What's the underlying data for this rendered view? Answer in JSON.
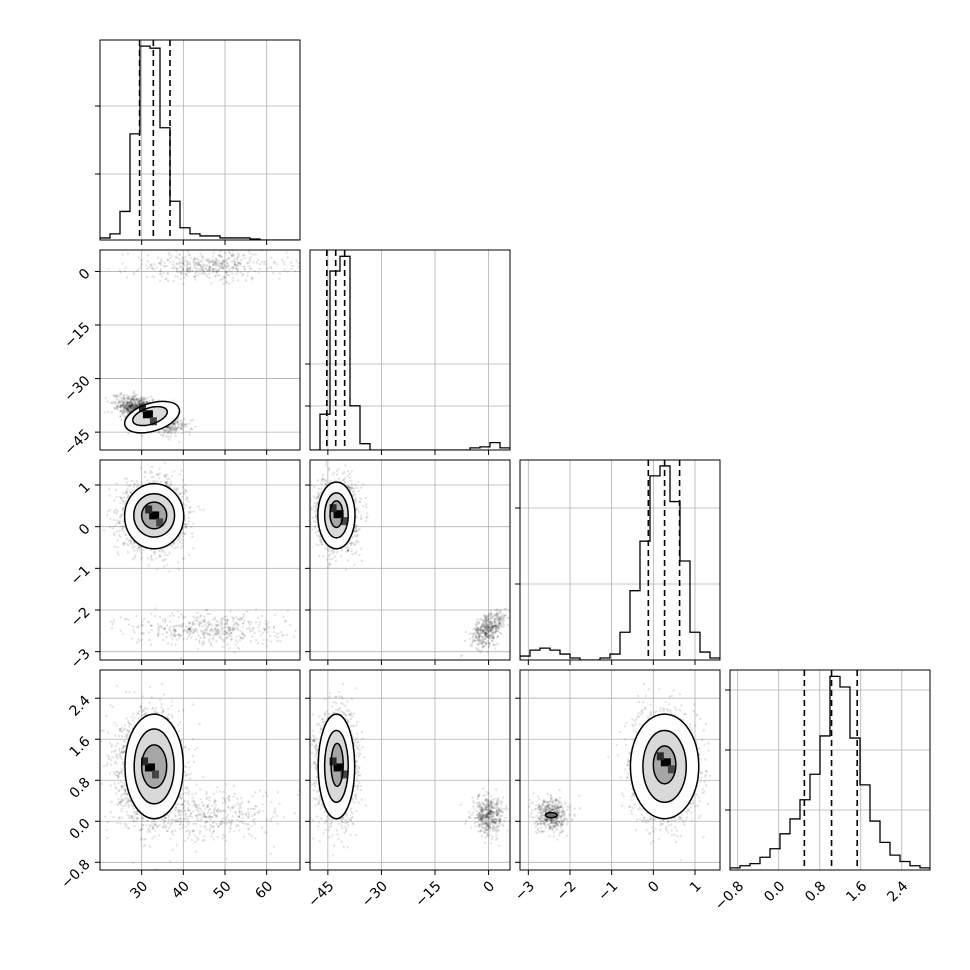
{
  "chart_data": {
    "type": "corner",
    "grid": true,
    "parameters": [
      {
        "range": [
          20,
          68
        ],
        "ticks": [
          30,
          40,
          50,
          60
        ],
        "tick_labels": [
          "30",
          "40",
          "50",
          "60"
        ]
      },
      {
        "range": [
          -50,
          6
        ],
        "ticks": [
          -45,
          -30,
          -15,
          0
        ],
        "tick_labels": [
          "−45",
          "−30",
          "−15",
          "0"
        ]
      },
      {
        "range": [
          -3.2,
          1.6
        ],
        "ticks": [
          -3,
          -2,
          -1,
          0,
          1
        ],
        "tick_labels": [
          "−3",
          "−2",
          "−1",
          "0",
          "1"
        ]
      },
      {
        "range": [
          -0.95,
          2.95
        ],
        "ticks": [
          -0.8,
          0.0,
          0.8,
          1.6,
          2.4
        ],
        "tick_labels": [
          "−0.8",
          "0.0",
          "0.8",
          "1.6",
          "2.4"
        ]
      }
    ],
    "histograms": [
      {
        "edges": [
          20,
          22.4,
          24.8,
          27.2,
          29.6,
          32,
          34.4,
          36.8,
          39.2,
          41.6,
          44,
          46.4,
          48.8,
          51.2,
          53.6,
          56,
          58.4,
          60.8,
          63.2,
          65.6,
          68
        ],
        "counts": [
          1,
          3,
          14,
          52,
          95,
          94,
          55,
          19,
          6,
          3,
          2,
          2,
          1,
          1,
          1,
          0.5,
          0,
          0,
          0,
          0
        ],
        "quantiles": [
          29.5,
          32.8,
          36.8
        ],
        "ymax": 98,
        "yticks": [
          0.33,
          0.67
        ]
      },
      {
        "edges": [
          -50,
          -47.2,
          -44.4,
          -41.6,
          -38.8,
          -36,
          -33.2,
          -30.4,
          -27.6,
          -24.8,
          -22,
          -19.2,
          -16.4,
          -13.6,
          -10.8,
          -8,
          -5.2,
          -2.4,
          0.4,
          3.2,
          6
        ],
        "counts": [
          0,
          17,
          85,
          92,
          21,
          3,
          0,
          0,
          0,
          0,
          0,
          0,
          0,
          0,
          0,
          0,
          1,
          1.5,
          3.5,
          1
        ],
        "quantiles": [
          -45.3,
          -42.8,
          -40.3
        ],
        "ymax": 95,
        "yticks": [
          0.22,
          0.43
        ]
      },
      {
        "edges": [
          -3.2,
          -2.96,
          -2.72,
          -2.48,
          -2.24,
          -2,
          -1.76,
          -1.52,
          -1.28,
          -1.04,
          -0.8,
          -0.56,
          -0.32,
          -0.08,
          0.16,
          0.4,
          0.64,
          0.88,
          1.12,
          1.36,
          1.6
        ],
        "counts": [
          2,
          5,
          6,
          5,
          3,
          1,
          0,
          0,
          1,
          3,
          14,
          35,
          60,
          93,
          98,
          80,
          50,
          14,
          4,
          1
        ],
        "quantiles": [
          -0.12,
          0.27,
          0.63
        ],
        "ymax": 101,
        "yticks": [
          0.38,
          0.76
        ]
      },
      {
        "edges": [
          -0.95,
          -0.755,
          -0.56,
          -0.365,
          -0.17,
          0.025,
          0.22,
          0.415,
          0.61,
          0.805,
          1.0,
          1.195,
          1.39,
          1.585,
          1.78,
          1.975,
          2.17,
          2.365,
          2.56,
          2.755,
          2.95
        ],
        "counts": [
          1,
          2,
          3,
          6,
          10,
          17,
          24,
          33,
          45,
          63,
          91,
          86,
          62,
          40,
          23,
          13,
          7,
          4,
          2,
          1
        ],
        "quantiles": [
          0.5,
          1.03,
          1.53
        ],
        "ymax": 94,
        "yticks": [
          0.3,
          0.6,
          0.9
        ]
      }
    ],
    "pairs": [
      {
        "row": 1,
        "col": 0,
        "clusters": [
          {
            "mean": [
              32,
              -40
            ],
            "sd": [
              3.4,
              2.2
            ],
            "corr": -0.6,
            "n": 2200
          },
          {
            "mean": [
              46,
              1.5
            ],
            "sd": [
              9.5,
              2.0
            ],
            "corr": 0,
            "n": 450
          }
        ],
        "contours": [
          {
            "center": [
              32.5,
              -40.8
            ],
            "radii": [
              6.8,
              3.9
            ],
            "angle": -0.3
          },
          {
            "center": [
              32,
              -40.5
            ],
            "radii": [
              4.3,
              2.3
            ],
            "angle": -0.3
          }
        ],
        "peak": [
          31.5,
          -40
        ]
      },
      {
        "row": 2,
        "col": 0,
        "clusters": [
          {
            "mean": [
              33,
              0.27
            ],
            "sd": [
              3.6,
              0.38
            ],
            "corr": 0,
            "n": 2200
          },
          {
            "mean": [
              46,
              -2.45
            ],
            "sd": [
              9.5,
              0.2
            ],
            "corr": 0,
            "n": 450
          }
        ],
        "contours": [
          {
            "center": [
              33,
              0.25
            ],
            "radii": [
              7.1,
              0.78
            ],
            "angle": 0
          },
          {
            "center": [
              33,
              0.27
            ],
            "radii": [
              4.9,
              0.52
            ],
            "angle": 0
          },
          {
            "center": [
              33,
              0.27
            ],
            "radii": [
              3.0,
              0.32
            ],
            "angle": 0
          }
        ],
        "peak": [
          33,
          0.27
        ]
      },
      {
        "row": 2,
        "col": 1,
        "clusters": [
          {
            "mean": [
              -42.5,
              0.27
            ],
            "sd": [
              2.6,
              0.38
            ],
            "corr": 0,
            "n": 2200
          },
          {
            "mean": [
              0,
              -2.45
            ],
            "sd": [
              2.4,
              0.22
            ],
            "corr": 0.5,
            "n": 450
          }
        ],
        "contours": [
          {
            "center": [
              -42.6,
              0.27
            ],
            "radii": [
              5.2,
              0.8
            ],
            "angle": 0
          },
          {
            "center": [
              -42.6,
              0.27
            ],
            "radii": [
              3.3,
              0.54
            ],
            "angle": 0
          },
          {
            "center": [
              -42.6,
              0.3
            ],
            "radii": [
              1.8,
              0.32
            ],
            "angle": 0
          }
        ],
        "peak": [
          -42,
          0.3
        ]
      },
      {
        "row": 3,
        "col": 0,
        "clusters": [
          {
            "mean": [
              32,
              1.05
            ],
            "sd": [
              3.7,
              0.5
            ],
            "corr": 0,
            "n": 2200
          },
          {
            "mean": [
              46,
              0.12
            ],
            "sd": [
              9.5,
              0.25
            ],
            "corr": 0,
            "n": 450
          }
        ],
        "contours": [
          {
            "center": [
              33,
              1.07
            ],
            "radii": [
              7.0,
              1.02
            ],
            "angle": 0
          },
          {
            "center": [
              33,
              1.07
            ],
            "radii": [
              4.8,
              0.73
            ],
            "angle": 0
          },
          {
            "center": [
              33,
              1.07
            ],
            "radii": [
              3.0,
              0.42
            ],
            "angle": 0
          }
        ],
        "peak": [
          32,
          1.05
        ]
      },
      {
        "row": 3,
        "col": 1,
        "clusters": [
          {
            "mean": [
              -42.5,
              1.05
            ],
            "sd": [
              2.6,
              0.5
            ],
            "corr": 0,
            "n": 2200
          },
          {
            "mean": [
              0,
              0.12
            ],
            "sd": [
              2.2,
              0.2
            ],
            "corr": 0,
            "n": 450
          }
        ],
        "contours": [
          {
            "center": [
              -42.6,
              1.07
            ],
            "radii": [
              5.1,
              1.02
            ],
            "angle": 0
          },
          {
            "center": [
              -42.6,
              1.07
            ],
            "radii": [
              3.3,
              0.7
            ],
            "angle": 0
          },
          {
            "center": [
              -42.4,
              1.1
            ],
            "radii": [
              1.7,
              0.42
            ],
            "angle": 0
          }
        ],
        "peak": [
          -42,
          1.05
        ]
      },
      {
        "row": 3,
        "col": 2,
        "clusters": [
          {
            "mean": [
              0.27,
              1.05
            ],
            "sd": [
              0.38,
              0.5
            ],
            "corr": 0,
            "n": 2200
          },
          {
            "mean": [
              -2.45,
              0.12
            ],
            "sd": [
              0.2,
              0.16
            ],
            "corr": 0,
            "n": 450
          }
        ],
        "contours": [
          {
            "center": [
              0.27,
              1.07
            ],
            "radii": [
              0.82,
              1.02
            ],
            "angle": 0
          },
          {
            "center": [
              0.27,
              1.07
            ],
            "radii": [
              0.52,
              0.7
            ],
            "angle": 0
          },
          {
            "center": [
              0.27,
              1.1
            ],
            "radii": [
              0.27,
              0.37
            ],
            "angle": 0
          },
          {
            "center": [
              -2.45,
              0.12
            ],
            "radii": [
              0.14,
              0.05
            ],
            "angle": 0
          }
        ],
        "peak": [
          0.3,
          1.15
        ]
      }
    ]
  }
}
